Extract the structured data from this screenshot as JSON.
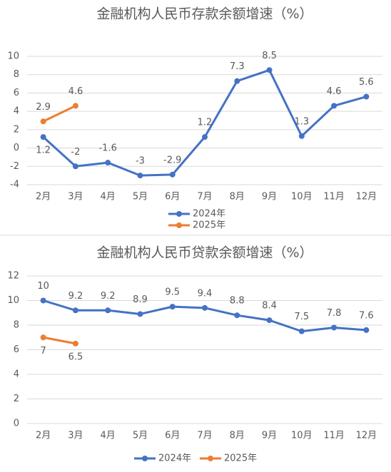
{
  "chart_data": [
    {
      "type": "line",
      "title": "金融机构人民币存款余额增速（%）",
      "categories": [
        "2月",
        "3月",
        "4月",
        "5月",
        "6月",
        "7月",
        "8月",
        "9月",
        "10月",
        "11月",
        "12月"
      ],
      "series": [
        {
          "name": "2024年",
          "color": "#4472c4",
          "values": [
            1.2,
            -2,
            -1.6,
            -3,
            -2.9,
            1.2,
            7.3,
            8.5,
            1.3,
            4.6,
            5.6
          ]
        },
        {
          "name": "2025年",
          "color": "#ed7d31",
          "values": [
            2.9,
            4.6,
            null,
            null,
            null,
            null,
            null,
            null,
            null,
            null,
            null
          ]
        }
      ],
      "ylim": [
        -4,
        10
      ],
      "yticks": [
        -4,
        -2,
        0,
        2,
        4,
        6,
        8,
        10
      ],
      "grid": true,
      "legend": "bottom"
    },
    {
      "type": "line",
      "title": "金融机构人民币贷款余额增速（%）",
      "categories": [
        "2月",
        "3月",
        "4月",
        "5月",
        "6月",
        "7月",
        "8月",
        "9月",
        "10月",
        "11月",
        "12月"
      ],
      "series": [
        {
          "name": "2024年",
          "color": "#4472c4",
          "values": [
            10,
            9.2,
            9.2,
            8.9,
            9.5,
            9.4,
            8.8,
            8.4,
            7.5,
            7.8,
            7.6
          ]
        },
        {
          "name": "2025年",
          "color": "#ed7d31",
          "values": [
            7,
            6.5,
            null,
            null,
            null,
            null,
            null,
            null,
            null,
            null,
            null
          ]
        }
      ],
      "ylim": [
        0,
        12
      ],
      "yticks": [
        0,
        2,
        4,
        6,
        8,
        10,
        12
      ],
      "grid": true,
      "legend": "bottom"
    }
  ]
}
